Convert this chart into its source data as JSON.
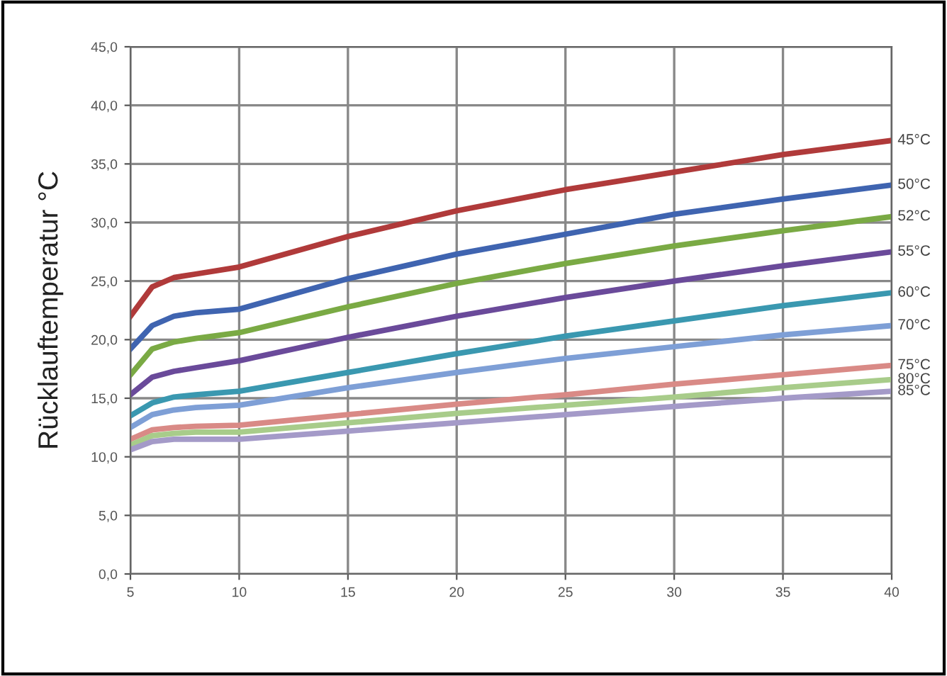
{
  "chart_data": {
    "type": "line",
    "ylabel": "Rücklauftemperatur °C",
    "x": [
      5,
      6,
      7,
      8,
      10,
      15,
      20,
      25,
      30,
      35,
      40
    ],
    "series": [
      {
        "name": "45°C",
        "color": "#b03a3a",
        "values": [
          22,
          24.5,
          25.3,
          25.6,
          26.2,
          28.8,
          31,
          32.8,
          34.3,
          35.8,
          37
        ]
      },
      {
        "name": "50°C",
        "color": "#3f64b0",
        "values": [
          19.2,
          21.2,
          22,
          22.3,
          22.6,
          25.2,
          27.3,
          29,
          30.7,
          32,
          33.2
        ]
      },
      {
        "name": "52°C",
        "color": "#7aaa44",
        "values": [
          17,
          19.2,
          19.8,
          20.1,
          20.6,
          22.8,
          24.8,
          26.5,
          28,
          29.3,
          30.5
        ]
      },
      {
        "name": "55°C",
        "color": "#6a4a9a",
        "values": [
          15.3,
          16.8,
          17.3,
          17.6,
          18.2,
          20.2,
          22,
          23.6,
          25,
          26.3,
          27.5
        ]
      },
      {
        "name": "60°C",
        "color": "#3a98b0",
        "values": [
          13.5,
          14.6,
          15.1,
          15.3,
          15.6,
          17.2,
          18.8,
          20.3,
          21.6,
          22.9,
          24
        ]
      },
      {
        "name": "70°C",
        "color": "#7e9fd6",
        "values": [
          12.5,
          13.6,
          14,
          14.2,
          14.4,
          15.9,
          17.2,
          18.4,
          19.4,
          20.4,
          21.2
        ]
      },
      {
        "name": "75°C",
        "color": "#d98a86",
        "values": [
          11.5,
          12.3,
          12.5,
          12.6,
          12.7,
          13.6,
          14.5,
          15.3,
          16.2,
          17,
          17.8
        ]
      },
      {
        "name": "80°C",
        "color": "#a8cc8a",
        "values": [
          11,
          11.8,
          12,
          12.1,
          12.1,
          12.9,
          13.7,
          14.4,
          15.1,
          15.9,
          16.6
        ]
      },
      {
        "name": "85°C",
        "color": "#a49ac8",
        "values": [
          10.6,
          11.3,
          11.5,
          11.5,
          11.5,
          12.2,
          12.9,
          13.6,
          14.3,
          15,
          15.6
        ]
      }
    ],
    "xlim": [
      5,
      40
    ],
    "xticks": [
      5,
      10,
      15,
      20,
      25,
      30,
      35,
      40
    ],
    "ylim": [
      0,
      45
    ],
    "yticks": [
      {
        "value": 0,
        "label": "0,0"
      },
      {
        "value": 5,
        "label": "5,0"
      },
      {
        "value": 10,
        "label": "10,0"
      },
      {
        "value": 15,
        "label": "15,0"
      },
      {
        "value": 20,
        "label": "20,0"
      },
      {
        "value": 25,
        "label": "25,0"
      },
      {
        "value": 30,
        "label": "30,0"
      },
      {
        "value": 35,
        "label": "35,0"
      },
      {
        "value": 40,
        "label": "40,0"
      },
      {
        "value": 45,
        "label": "45,0"
      }
    ],
    "grid": true,
    "marker": "none",
    "line_style": "solid"
  }
}
